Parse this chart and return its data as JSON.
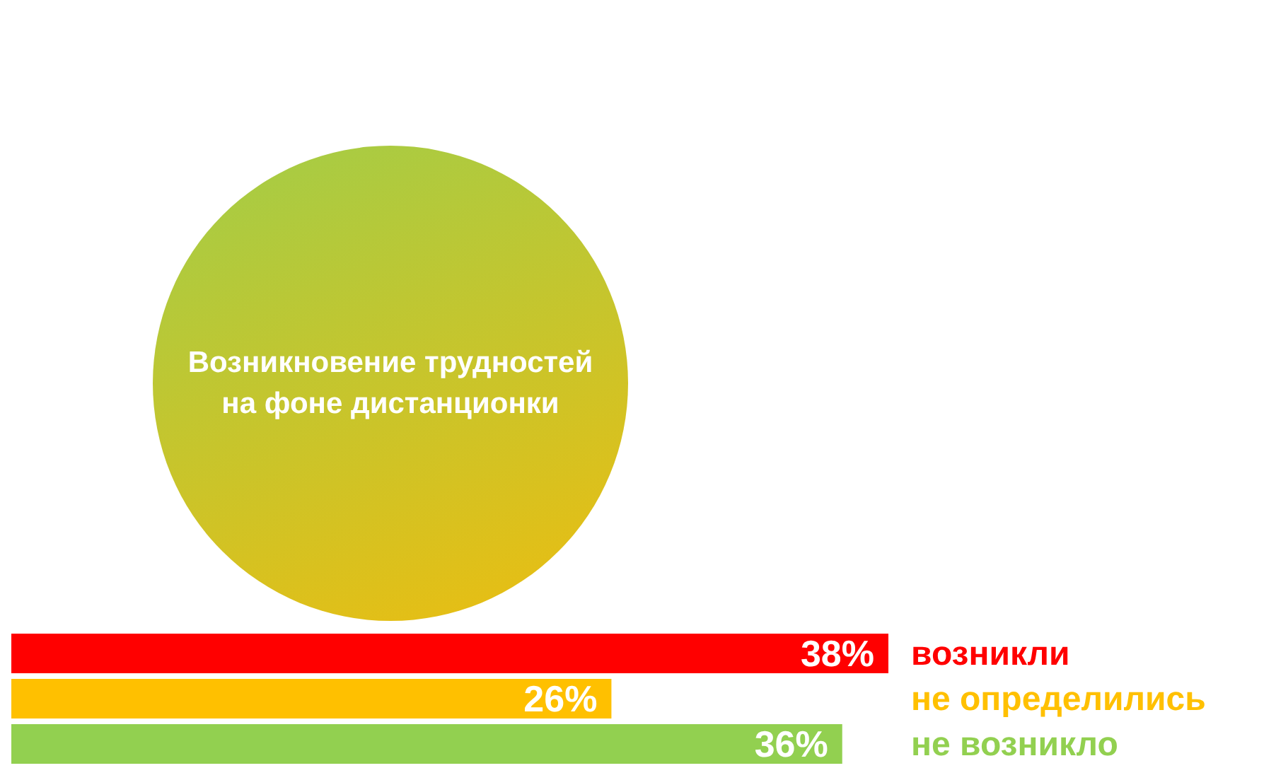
{
  "chart_data": {
    "type": "bar",
    "orientation": "horizontal",
    "title": "Возникновение трудностей на фоне дистанционки",
    "categories": [
      "возникли",
      "не определились",
      "не возникло"
    ],
    "values": [
      38,
      26,
      36
    ],
    "value_labels": [
      "38%",
      "26%",
      "36%"
    ],
    "colors": [
      "#ff0000",
      "#ffc000",
      "#92d050"
    ]
  }
}
